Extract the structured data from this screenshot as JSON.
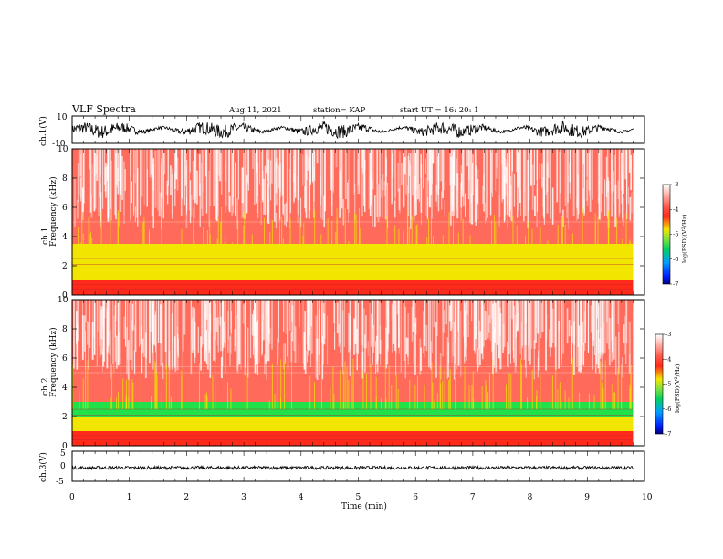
{
  "header": {
    "title": "VLF Spectra",
    "date": "Aug.11, 2021",
    "station": "station= KAP",
    "start": "start  UT =   16: 20: 1"
  },
  "colors": {
    "red": "#ff2a1a",
    "yellow": "#f2e600",
    "green": "#22e04a",
    "white": "#ffffff",
    "waveform": "#000000"
  },
  "chart_data": [
    {
      "type": "line",
      "name": "ch1-waveform",
      "ylabel": "ch.1(V)",
      "ylim": [
        -10,
        10
      ],
      "yticks": [
        "10",
        "-10"
      ],
      "xlim": [
        0,
        10
      ],
      "description_values": {
        "amplitude_V": 5
      }
    },
    {
      "type": "heatmap",
      "name": "ch1-spectrogram",
      "ylabel": "ch.1 Frequency (kHz)",
      "ylim": [
        0,
        10
      ],
      "yticks": [
        "0",
        "2",
        "4",
        "6",
        "8",
        "10"
      ],
      "xlim": [
        0,
        9.8
      ],
      "bands_kHz": [
        {
          "from": 0,
          "to": 1,
          "level": "red"
        },
        {
          "from": 1,
          "to": 3.5,
          "level": "yellow"
        },
        {
          "from": 3.5,
          "to": 10,
          "level": "red-white"
        }
      ]
    },
    {
      "type": "heatmap",
      "name": "ch2-spectrogram",
      "ylabel": "ch.2 Frequency (kHz)",
      "ylim": [
        0,
        10
      ],
      "yticks": [
        "0",
        "2",
        "4",
        "6",
        "8",
        "10"
      ],
      "xlim": [
        0,
        9.8
      ],
      "bands_kHz": [
        {
          "from": 0,
          "to": 1,
          "level": "red"
        },
        {
          "from": 1,
          "to": 2,
          "level": "yellow"
        },
        {
          "from": 2,
          "to": 3,
          "level": "green"
        },
        {
          "from": 3,
          "to": 10,
          "level": "red-white"
        }
      ]
    },
    {
      "type": "line",
      "name": "ch3-waveform",
      "ylabel": "ch.3(V)",
      "ylim": [
        -5,
        5
      ],
      "yticks": [
        "5",
        "0",
        "-5"
      ],
      "xlim": [
        0,
        10
      ],
      "xlabel": "Time  (min)",
      "xticks": [
        "0",
        "1",
        "2",
        "3",
        "4",
        "5",
        "6",
        "7",
        "8",
        "9",
        "10"
      ],
      "level_V": -0.5
    }
  ],
  "colorbar": {
    "label": "log(PSD)(V²/Hz)",
    "ticks": [
      "-3",
      "-4",
      "-5",
      "-6",
      "-7"
    ],
    "range": [
      -7,
      -3
    ]
  }
}
